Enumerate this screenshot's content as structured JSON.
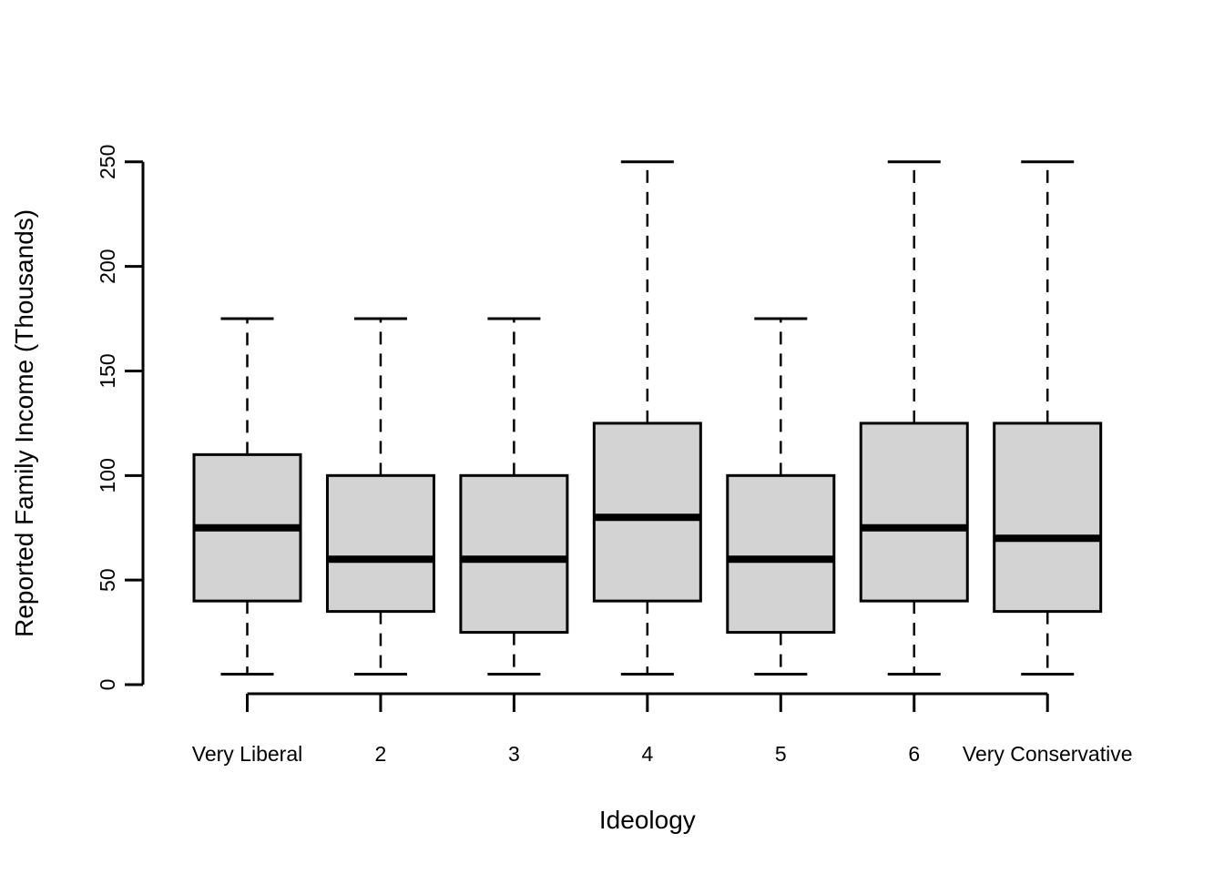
{
  "figure": {
    "background": "#FFFFFF"
  },
  "chart_data": {
    "type": "boxplot",
    "title": "",
    "xlabel": "Ideology",
    "ylabel": "Reported Family Income (Thousands)",
    "ylim": [
      0,
      250
    ],
    "yticks": [
      0,
      50,
      100,
      150,
      200,
      250
    ],
    "grid": false,
    "legend": "none",
    "categories": [
      "Very Liberal",
      "2",
      "3",
      "4",
      "5",
      "6",
      "Very Conservative"
    ],
    "series": [
      {
        "category": "Very Liberal",
        "whisker_low": 5,
        "q1": 40,
        "median": 75,
        "q3": 110,
        "whisker_high": 175
      },
      {
        "category": "2",
        "whisker_low": 5,
        "q1": 35,
        "median": 60,
        "q3": 100,
        "whisker_high": 175
      },
      {
        "category": "3",
        "whisker_low": 5,
        "q1": 25,
        "median": 60,
        "q3": 100,
        "whisker_high": 175
      },
      {
        "category": "4",
        "whisker_low": 5,
        "q1": 40,
        "median": 80,
        "q3": 125,
        "whisker_high": 250
      },
      {
        "category": "5",
        "whisker_low": 5,
        "q1": 25,
        "median": 60,
        "q3": 100,
        "whisker_high": 175
      },
      {
        "category": "6",
        "whisker_low": 5,
        "q1": 40,
        "median": 75,
        "q3": 125,
        "whisker_high": 250
      },
      {
        "category": "Very Conservative",
        "whisker_low": 5,
        "q1": 35,
        "median": 70,
        "q3": 125,
        "whisker_high": 250
      }
    ],
    "colors": {
      "box_fill": "#D3D3D3",
      "stroke": "#000000",
      "median": "#000000",
      "background": "#FFFFFF"
    },
    "whisker_style": "dashed"
  }
}
